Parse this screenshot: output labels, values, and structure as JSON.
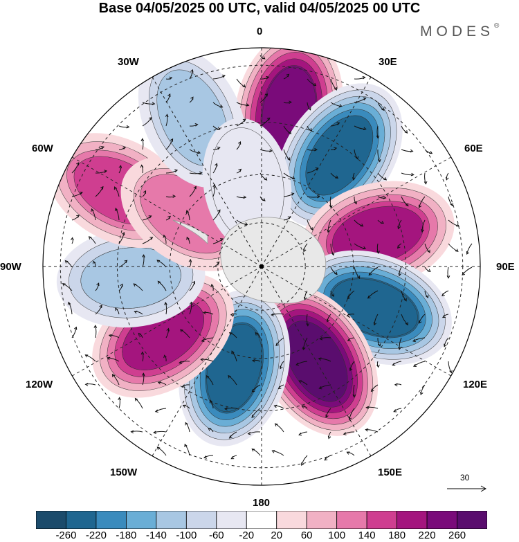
{
  "title": "Base 04/05/2025 00 UTC, valid 04/05/2025 00 UTC",
  "brand": {
    "name": "MODES",
    "mark": "®"
  },
  "longitude_labels": {
    "lon_0": "0",
    "lon_30e": "30E",
    "lon_60e": "60E",
    "lon_90e": "90E",
    "lon_120e": "120E",
    "lon_150e": "150E",
    "lon_180": "180",
    "lon_150w": "150W",
    "lon_120w": "120W",
    "lon_90w": "90W",
    "lon_60w": "60W",
    "lon_30w": "30W"
  },
  "reference_vector": {
    "label": "30"
  },
  "colorbar": {
    "colors": [
      "#1b4b6b",
      "#1f6690",
      "#3a8bbd",
      "#6aaed6",
      "#a8c7e3",
      "#cbd6ea",
      "#e7e7f2",
      "#ffffff",
      "#f9d9dd",
      "#f1b1c4",
      "#e679aa",
      "#cf3e90",
      "#a4157e",
      "#7a0b7a",
      "#5a0d6e"
    ],
    "tick_labels": [
      "-260",
      "-220",
      "-180",
      "-140",
      "-100",
      "-60",
      "-20",
      "20",
      "60",
      "100",
      "140",
      "180",
      "220",
      "260"
    ]
  },
  "map": {
    "projection": "south polar stereographic",
    "field_anomalies": [
      {
        "lon": 10,
        "r": 0.72,
        "value": 250
      },
      {
        "lon": 35,
        "r": 0.62,
        "value": -240
      },
      {
        "lon": 75,
        "r": 0.55,
        "value": 190
      },
      {
        "lon": 110,
        "r": 0.55,
        "value": -250
      },
      {
        "lon": 150,
        "r": 0.5,
        "value": 280
      },
      {
        "lon": -165,
        "r": 0.48,
        "value": -250
      },
      {
        "lon": -125,
        "r": 0.55,
        "value": 200
      },
      {
        "lon": -95,
        "r": 0.6,
        "value": -120
      },
      {
        "lon": -62,
        "r": 0.74,
        "value": 150
      },
      {
        "lon": -55,
        "r": 0.42,
        "value": 100
      },
      {
        "lon": -25,
        "r": 0.75,
        "value": -110
      },
      {
        "lon": -10,
        "r": 0.38,
        "value": -60
      }
    ]
  }
}
